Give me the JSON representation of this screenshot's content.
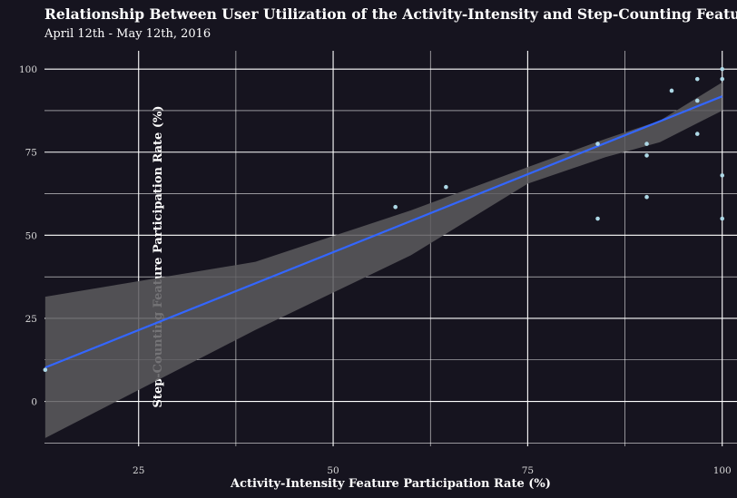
{
  "chart_data": {
    "type": "scatter",
    "title": "Relationship Between User Utilization of the Activity-Intensity and Step-Counting Features",
    "subtitle": "April 12th - May 12th, 2016",
    "xlabel": "Activity-Intensity Feature Participation Rate (%)",
    "ylabel": "Step-Counting Feature Participation Rate (%)",
    "xlim": [
      12.9,
      101.9
    ],
    "ylim": [
      -13.5,
      105.5
    ],
    "xticks": [
      25,
      50,
      75,
      100
    ],
    "yticks": [
      0,
      25,
      50,
      75,
      100
    ],
    "grid": true,
    "points": [
      {
        "x": 13,
        "y": 9.5
      },
      {
        "x": 58,
        "y": 58.5
      },
      {
        "x": 64.5,
        "y": 64.5
      },
      {
        "x": 84,
        "y": 55
      },
      {
        "x": 84,
        "y": 77.5
      },
      {
        "x": 90.3,
        "y": 61.5
      },
      {
        "x": 90.3,
        "y": 74
      },
      {
        "x": 90.3,
        "y": 77.5
      },
      {
        "x": 93.5,
        "y": 93.5
      },
      {
        "x": 96.8,
        "y": 80.5
      },
      {
        "x": 96.8,
        "y": 90.5
      },
      {
        "x": 96.8,
        "y": 97
      },
      {
        "x": 100,
        "y": 55
      },
      {
        "x": 100,
        "y": 68
      },
      {
        "x": 100,
        "y": 97
      },
      {
        "x": 100,
        "y": 100
      }
    ],
    "fit_line": {
      "x": [
        13,
        100
      ],
      "y": [
        10.2,
        91.8
      ]
    },
    "confidence_band": {
      "x": [
        13,
        40,
        60,
        75,
        85,
        92,
        100
      ],
      "upper": [
        31.5,
        42,
        57.5,
        70.5,
        79,
        84.5,
        96
      ],
      "lower": [
        -11,
        21.5,
        44,
        65.5,
        73.5,
        78,
        87.5
      ]
    },
    "colors": {
      "background": "#16141f",
      "grid": "#ffffff",
      "band": "#5c5a5e",
      "line": "#3366ff",
      "points": "#add8e6"
    }
  }
}
